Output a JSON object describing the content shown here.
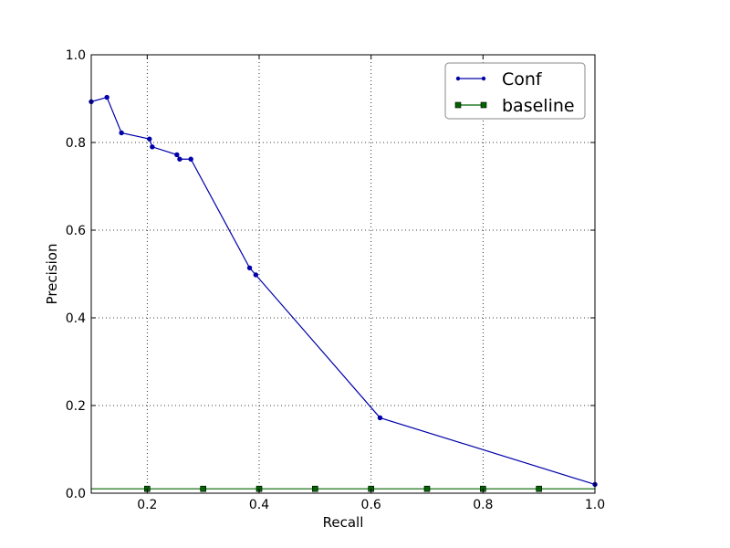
{
  "chart_data": {
    "type": "line",
    "title": "",
    "xlabel": "Recall",
    "ylabel": "Precision",
    "xlim": [
      0.1,
      1.0
    ],
    "ylim": [
      0.0,
      1.0
    ],
    "x_ticks": [
      "0.2",
      "0.4",
      "0.6",
      "0.8",
      "1.0"
    ],
    "x_tick_values": [
      0.2,
      0.4,
      0.6,
      0.8,
      1.0
    ],
    "y_ticks": [
      "0.0",
      "0.2",
      "0.4",
      "0.6",
      "0.8",
      "1.0"
    ],
    "y_tick_values": [
      0.0,
      0.2,
      0.4,
      0.6,
      0.8,
      1.0
    ],
    "grid": true,
    "legend_position": "top-right",
    "series": [
      {
        "name": "Conf",
        "color": "#0000aa",
        "marker": "dot",
        "x": [
          0.1,
          0.128,
          0.154,
          0.204,
          0.209,
          0.253,
          0.258,
          0.278,
          0.383,
          0.394,
          0.616,
          1.0
        ],
        "y": [
          0.893,
          0.903,
          0.822,
          0.808,
          0.79,
          0.772,
          0.762,
          0.762,
          0.514,
          0.498,
          0.172,
          0.02
        ]
      },
      {
        "name": "baseline",
        "color": "#006400",
        "marker": "square",
        "x": [
          0.1,
          0.2,
          0.3,
          0.4,
          0.5,
          0.6,
          0.7,
          0.8,
          0.9,
          1.0
        ],
        "y": [
          0.01,
          0.01,
          0.01,
          0.01,
          0.01,
          0.01,
          0.01,
          0.01,
          0.01,
          0.01
        ],
        "marker_x": [
          0.2,
          0.3,
          0.4,
          0.5,
          0.6,
          0.7,
          0.8,
          0.9
        ]
      }
    ]
  }
}
